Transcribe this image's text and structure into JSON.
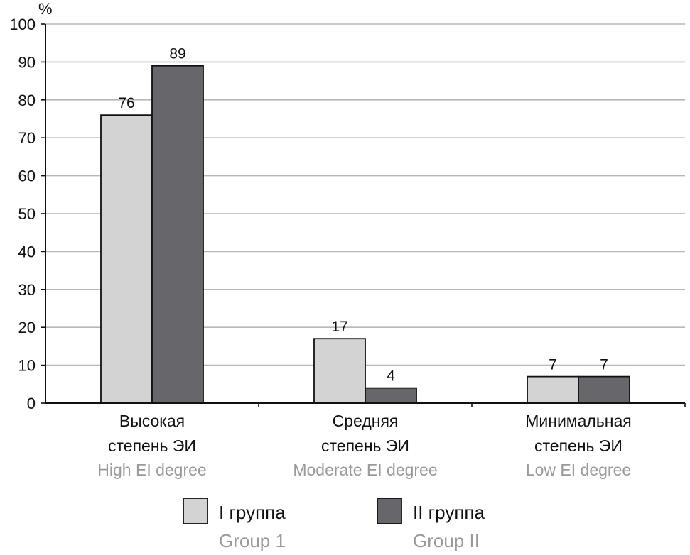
{
  "chart_data": {
    "type": "bar",
    "ylabel": "%",
    "ylim": [
      0,
      100
    ],
    "yticks": [
      0,
      10,
      20,
      30,
      40,
      50,
      60,
      70,
      80,
      90,
      100
    ],
    "grid": true,
    "legend_position": "bottom",
    "categories": [
      {
        "ru": [
          "Высокая",
          "степень ЭИ"
        ],
        "en": "High EI degree"
      },
      {
        "ru": [
          "Средняя",
          "степень ЭИ"
        ],
        "en": "Moderate EI degree"
      },
      {
        "ru": [
          "Минимальная",
          "степень ЭИ"
        ],
        "en": "Low EI degree"
      }
    ],
    "series": [
      {
        "name": "I группа",
        "name_en": "Group 1",
        "color": "#d3d3d3",
        "values": [
          76,
          17,
          7
        ]
      },
      {
        "name": "II группа",
        "name_en": "Group II",
        "color": "#67676b",
        "values": [
          89,
          4,
          7
        ]
      }
    ]
  }
}
